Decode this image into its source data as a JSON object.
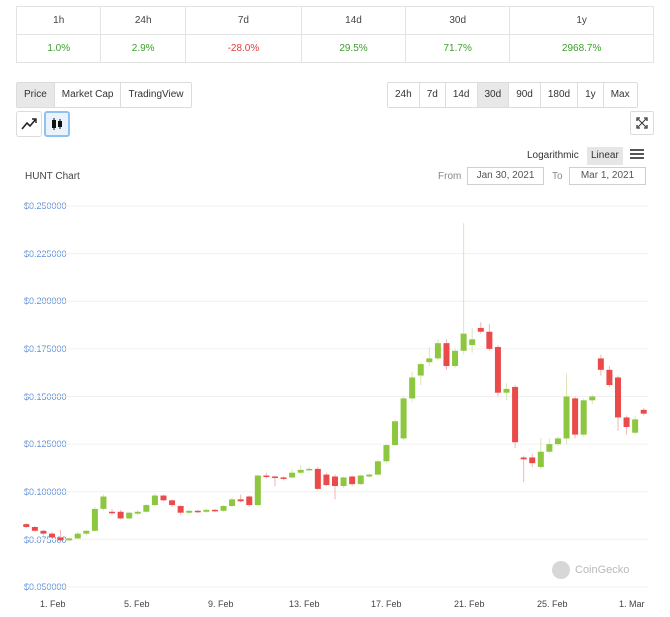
{
  "changes": {
    "headers": [
      "1h",
      "24h",
      "7d",
      "14d",
      "30d",
      "1y"
    ],
    "values": [
      "1.0%",
      "2.9%",
      "-28.0%",
      "29.5%",
      "71.7%",
      "2968.7%"
    ],
    "positive_color": "#3ca02b",
    "negative_color": "#e23a3a"
  },
  "metric_tabs": {
    "price": "Price",
    "market_cap": "Market Cap",
    "tradingview": "TradingView",
    "active": "Price"
  },
  "range_tabs": {
    "items": [
      "24h",
      "7d",
      "14d",
      "30d",
      "90d",
      "180d",
      "1y",
      "Max"
    ],
    "active": "30d"
  },
  "chart_type": {
    "options": [
      "line-chart-icon",
      "candlestick-icon"
    ],
    "active": "candlestick-icon"
  },
  "scale": {
    "logarithmic": "Logarithmic",
    "linear": "Linear",
    "active": "Linear"
  },
  "chart_header": {
    "title": "HUNT Chart",
    "from_label": "From",
    "from_value": "Jan 30, 2021",
    "to_label": "To",
    "to_value": "Mar 1, 2021"
  },
  "watermark": "CoinGecko",
  "chart_data": {
    "type": "candlestick",
    "title": "HUNT Chart",
    "y_ticks": [
      "$0.250000",
      "$0.225000",
      "$0.200000",
      "$0.175000",
      "$0.150000",
      "$0.125000",
      "$0.100000",
      "$0.075000",
      "$0.050000"
    ],
    "ylim": [
      0.05,
      0.25
    ],
    "x_ticks": [
      "1. Feb",
      "5. Feb",
      "9. Feb",
      "13. Feb",
      "17. Feb",
      "21. Feb",
      "25. Feb",
      "1. Mar"
    ],
    "up_color": "#8dc63f",
    "down_color": "#ea4a4a",
    "candles": [
      {
        "o": 0.083,
        "h": 0.0835,
        "l": 0.081,
        "c": 0.0815
      },
      {
        "o": 0.0815,
        "h": 0.082,
        "l": 0.079,
        "c": 0.0795
      },
      {
        "o": 0.0795,
        "h": 0.08,
        "l": 0.077,
        "c": 0.078
      },
      {
        "o": 0.078,
        "h": 0.079,
        "l": 0.0755,
        "c": 0.076
      },
      {
        "o": 0.076,
        "h": 0.08,
        "l": 0.0745,
        "c": 0.0745
      },
      {
        "o": 0.0745,
        "h": 0.076,
        "l": 0.074,
        "c": 0.0755
      },
      {
        "o": 0.0755,
        "h": 0.079,
        "l": 0.075,
        "c": 0.078
      },
      {
        "o": 0.078,
        "h": 0.08,
        "l": 0.077,
        "c": 0.0795
      },
      {
        "o": 0.0795,
        "h": 0.092,
        "l": 0.079,
        "c": 0.091
      },
      {
        "o": 0.091,
        "h": 0.0985,
        "l": 0.09,
        "c": 0.0975
      },
      {
        "o": 0.0895,
        "h": 0.091,
        "l": 0.088,
        "c": 0.089
      },
      {
        "o": 0.0895,
        "h": 0.0905,
        "l": 0.0855,
        "c": 0.086
      },
      {
        "o": 0.086,
        "h": 0.0895,
        "l": 0.0855,
        "c": 0.089
      },
      {
        "o": 0.0885,
        "h": 0.0905,
        "l": 0.0875,
        "c": 0.0895
      },
      {
        "o": 0.0895,
        "h": 0.0935,
        "l": 0.089,
        "c": 0.093
      },
      {
        "o": 0.093,
        "h": 0.099,
        "l": 0.0925,
        "c": 0.098
      },
      {
        "o": 0.098,
        "h": 0.0985,
        "l": 0.095,
        "c": 0.0955
      },
      {
        "o": 0.0955,
        "h": 0.096,
        "l": 0.092,
        "c": 0.093
      },
      {
        "o": 0.0925,
        "h": 0.093,
        "l": 0.088,
        "c": 0.089
      },
      {
        "o": 0.089,
        "h": 0.0905,
        "l": 0.0885,
        "c": 0.09
      },
      {
        "o": 0.09,
        "h": 0.0905,
        "l": 0.089,
        "c": 0.0895
      },
      {
        "o": 0.0895,
        "h": 0.091,
        "l": 0.089,
        "c": 0.0905
      },
      {
        "o": 0.0905,
        "h": 0.091,
        "l": 0.0895,
        "c": 0.09
      },
      {
        "o": 0.09,
        "h": 0.093,
        "l": 0.0895,
        "c": 0.0925
      },
      {
        "o": 0.0925,
        "h": 0.097,
        "l": 0.092,
        "c": 0.096
      },
      {
        "o": 0.096,
        "h": 0.0985,
        "l": 0.0945,
        "c": 0.095
      },
      {
        "o": 0.0975,
        "h": 0.098,
        "l": 0.092,
        "c": 0.093
      },
      {
        "o": 0.093,
        "h": 0.109,
        "l": 0.0925,
        "c": 0.1085
      },
      {
        "o": 0.1085,
        "h": 0.11,
        "l": 0.107,
        "c": 0.108
      },
      {
        "o": 0.108,
        "h": 0.1085,
        "l": 0.103,
        "c": 0.1075
      },
      {
        "o": 0.1075,
        "h": 0.108,
        "l": 0.106,
        "c": 0.107
      },
      {
        "o": 0.1075,
        "h": 0.112,
        "l": 0.107,
        "c": 0.11
      },
      {
        "o": 0.11,
        "h": 0.114,
        "l": 0.109,
        "c": 0.1115
      },
      {
        "o": 0.1115,
        "h": 0.113,
        "l": 0.111,
        "c": 0.112
      },
      {
        "o": 0.112,
        "h": 0.113,
        "l": 0.101,
        "c": 0.1015
      },
      {
        "o": 0.109,
        "h": 0.11,
        "l": 0.103,
        "c": 0.1035
      },
      {
        "o": 0.108,
        "h": 0.109,
        "l": 0.096,
        "c": 0.103
      },
      {
        "o": 0.103,
        "h": 0.108,
        "l": 0.102,
        "c": 0.1075
      },
      {
        "o": 0.108,
        "h": 0.1085,
        "l": 0.103,
        "c": 0.104
      },
      {
        "o": 0.104,
        "h": 0.109,
        "l": 0.1035,
        "c": 0.1085
      },
      {
        "o": 0.108,
        "h": 0.1095,
        "l": 0.1075,
        "c": 0.109
      },
      {
        "o": 0.109,
        "h": 0.117,
        "l": 0.1085,
        "c": 0.116
      },
      {
        "o": 0.116,
        "h": 0.125,
        "l": 0.115,
        "c": 0.1245
      },
      {
        "o": 0.1245,
        "h": 0.138,
        "l": 0.124,
        "c": 0.137
      },
      {
        "o": 0.128,
        "h": 0.15,
        "l": 0.127,
        "c": 0.149
      },
      {
        "o": 0.149,
        "h": 0.163,
        "l": 0.147,
        "c": 0.16
      },
      {
        "o": 0.161,
        "h": 0.168,
        "l": 0.156,
        "c": 0.167
      },
      {
        "o": 0.168,
        "h": 0.176,
        "l": 0.166,
        "c": 0.17
      },
      {
        "o": 0.17,
        "h": 0.18,
        "l": 0.169,
        "c": 0.178
      },
      {
        "o": 0.178,
        "h": 0.18,
        "l": 0.164,
        "c": 0.166
      },
      {
        "o": 0.166,
        "h": 0.175,
        "l": 0.165,
        "c": 0.174
      },
      {
        "o": 0.174,
        "h": 0.241,
        "l": 0.172,
        "c": 0.183
      },
      {
        "o": 0.177,
        "h": 0.186,
        "l": 0.173,
        "c": 0.18
      },
      {
        "o": 0.186,
        "h": 0.189,
        "l": 0.183,
        "c": 0.184
      },
      {
        "o": 0.184,
        "h": 0.188,
        "l": 0.174,
        "c": 0.175
      },
      {
        "o": 0.176,
        "h": 0.177,
        "l": 0.15,
        "c": 0.152
      },
      {
        "o": 0.152,
        "h": 0.157,
        "l": 0.148,
        "c": 0.154
      },
      {
        "o": 0.155,
        "h": 0.156,
        "l": 0.123,
        "c": 0.126
      },
      {
        "o": 0.118,
        "h": 0.119,
        "l": 0.105,
        "c": 0.117
      },
      {
        "o": 0.118,
        "h": 0.12,
        "l": 0.113,
        "c": 0.115
      },
      {
        "o": 0.113,
        "h": 0.128,
        "l": 0.112,
        "c": 0.121
      },
      {
        "o": 0.121,
        "h": 0.128,
        "l": 0.12,
        "c": 0.125
      },
      {
        "o": 0.125,
        "h": 0.129,
        "l": 0.124,
        "c": 0.128
      },
      {
        "o": 0.128,
        "h": 0.162,
        "l": 0.125,
        "c": 0.15
      },
      {
        "o": 0.149,
        "h": 0.15,
        "l": 0.128,
        "c": 0.13
      },
      {
        "o": 0.13,
        "h": 0.149,
        "l": 0.129,
        "c": 0.148
      },
      {
        "o": 0.148,
        "h": 0.151,
        "l": 0.146,
        "c": 0.15
      },
      {
        "o": 0.17,
        "h": 0.172,
        "l": 0.161,
        "c": 0.164
      },
      {
        "o": 0.164,
        "h": 0.166,
        "l": 0.155,
        "c": 0.156
      },
      {
        "o": 0.16,
        "h": 0.161,
        "l": 0.132,
        "c": 0.139
      },
      {
        "o": 0.139,
        "h": 0.14,
        "l": 0.13,
        "c": 0.134
      },
      {
        "o": 0.131,
        "h": 0.14,
        "l": 0.13,
        "c": 0.138
      },
      {
        "o": 0.143,
        "h": 0.144,
        "l": 0.14,
        "c": 0.141
      }
    ]
  }
}
